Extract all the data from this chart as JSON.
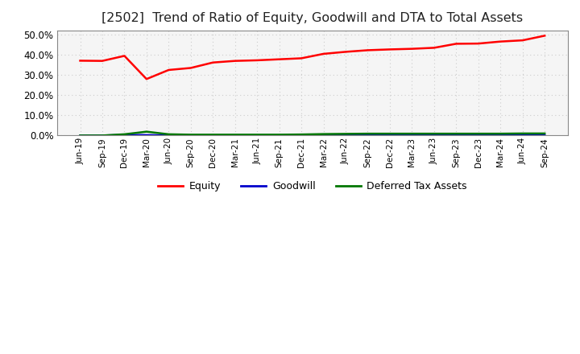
{
  "title": "[2502]  Trend of Ratio of Equity, Goodwill and DTA to Total Assets",
  "title_fontsize": 11.5,
  "x_labels": [
    "Jun-19",
    "Sep-19",
    "Dec-19",
    "Mar-20",
    "Jun-20",
    "Sep-20",
    "Dec-20",
    "Mar-21",
    "Jun-21",
    "Sep-21",
    "Dec-21",
    "Mar-22",
    "Jun-22",
    "Sep-22",
    "Dec-22",
    "Mar-23",
    "Jun-23",
    "Sep-23",
    "Dec-23",
    "Mar-24",
    "Jun-24",
    "Sep-24"
  ],
  "equity": [
    0.371,
    0.37,
    0.395,
    0.28,
    0.325,
    0.335,
    0.362,
    0.37,
    0.373,
    0.378,
    0.383,
    0.405,
    0.415,
    0.423,
    0.427,
    0.43,
    0.435,
    0.455,
    0.456,
    0.466,
    0.472,
    0.495
  ],
  "goodwill": [
    0.0,
    0.0,
    0.003,
    0.002,
    0.001,
    0.001,
    0.001,
    0.001,
    0.001,
    0.001,
    0.001,
    0.001,
    0.001,
    0.001,
    0.001,
    0.001,
    0.001,
    0.001,
    0.001,
    0.001,
    0.001,
    0.001
  ],
  "dta": [
    0.0,
    0.0,
    0.006,
    0.019,
    0.006,
    0.004,
    0.004,
    0.004,
    0.004,
    0.004,
    0.005,
    0.007,
    0.008,
    0.009,
    0.009,
    0.009,
    0.009,
    0.009,
    0.009,
    0.009,
    0.01,
    0.01
  ],
  "equity_color": "#ff0000",
  "goodwill_color": "#0000cc",
  "dta_color": "#007700",
  "ylim": [
    0.0,
    0.52
  ],
  "yticks": [
    0.0,
    0.1,
    0.2,
    0.3,
    0.4,
    0.5
  ],
  "background_color": "#ffffff",
  "grid_color": "#cccccc",
  "legend_labels": [
    "Equity",
    "Goodwill",
    "Deferred Tax Assets"
  ]
}
